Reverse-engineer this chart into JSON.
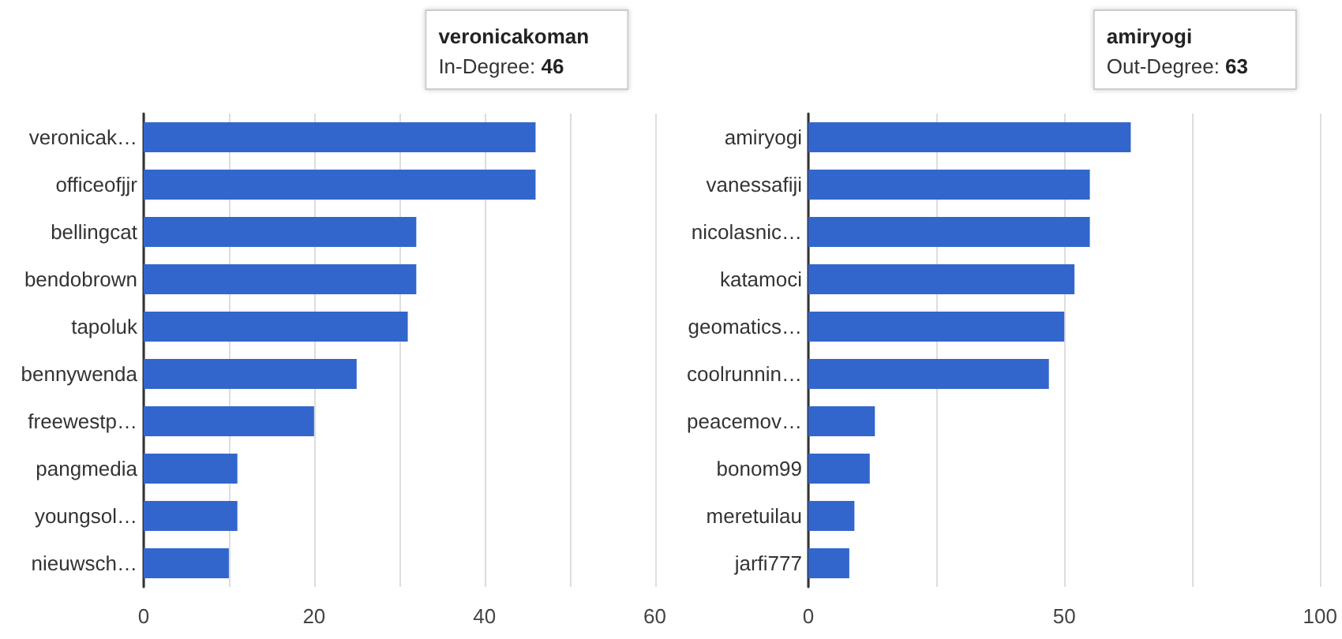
{
  "chart_data": [
    {
      "type": "bar",
      "orientation": "horizontal",
      "categories": [
        "veronicak…",
        "officeofjjr",
        "bellingcat",
        "bendobrown",
        "tapoluk",
        "bennywenda",
        "freewestp…",
        "pangmedia",
        "youngsol…",
        "nieuwsch…"
      ],
      "values": [
        46,
        46,
        32,
        32,
        31,
        25,
        20,
        11,
        11,
        10
      ],
      "color": "#3366cc",
      "xlim": [
        0,
        60
      ],
      "xticks": [
        0,
        {
          "value": 10,
          "label": null
        },
        20,
        {
          "value": 30,
          "label": null
        },
        40,
        {
          "value": 50,
          "label": null
        },
        60
      ],
      "grid": "x",
      "annotations": [
        "veronicakoman\nIn-Degree: 46"
      ]
    },
    {
      "type": "bar",
      "orientation": "horizontal",
      "categories": [
        "amiryogi",
        "vanessafiji",
        "nicolasnic…",
        "katamoci",
        "geomatics…",
        "coolrunnin…",
        "peacemov…",
        "bonom99",
        "meretuilau",
        "jarfi777"
      ],
      "values": [
        63,
        55,
        55,
        52,
        50,
        47,
        13,
        12,
        9,
        8
      ],
      "color": "#3366cc",
      "xlim": [
        0,
        100
      ],
      "xticks": [
        0,
        {
          "value": 25,
          "label": null
        },
        50,
        {
          "value": 75,
          "label": null
        },
        100
      ],
      "grid": "x",
      "annotations": [
        "amiryogi\nOut-Degree: 63"
      ]
    }
  ]
}
